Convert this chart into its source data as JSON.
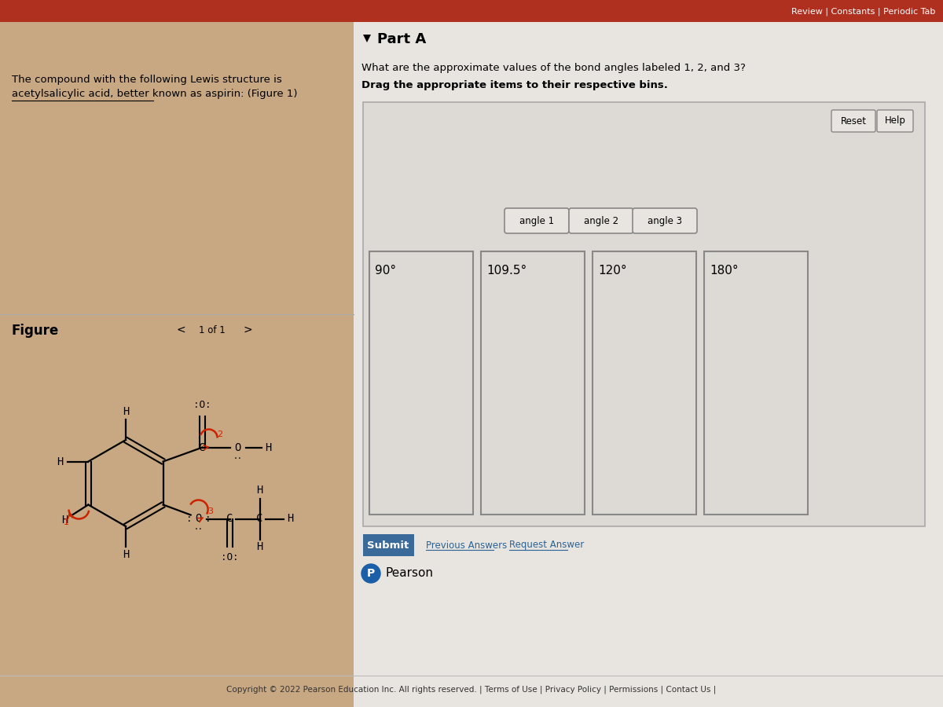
{
  "bg_left_color": "#c8a882",
  "bg_right_color": "#e8e4df",
  "header_bar_color": "#b03020",
  "title_text_line1": "The compound with the following Lewis structure is",
  "title_text_line2": "acetylsalicylic acid, better known as aspirin: (Figure 1)",
  "part_a_label": "Part A",
  "question_line1": "What are the approximate values of the bond angles labeled 1, 2, and 3?",
  "question_line2": "Drag the appropriate items to their respective bins.",
  "figure_label": "Figure",
  "figure_nav": "1 of 1",
  "angle_tokens": [
    "angle 1",
    "angle 2",
    "angle 3"
  ],
  "bin_labels": [
    "90°",
    "109.5°",
    "120°",
    "180°"
  ],
  "reset_btn": "Reset",
  "help_btn": "Help",
  "submit_btn": "Submit",
  "prev_answers": "Previous Answers",
  "req_answer": "Request Answer",
  "pearson_text": "Pearson",
  "copyright_text": "Copyright © 2022 Pearson Education Inc. All rights reserved. | Terms of Use | Privacy Policy | Permissions | Contact Us |",
  "review_text": "Review | Constants | Periodic Tab",
  "red_color": "#cc2200",
  "link_color": "#2a6496",
  "submit_color": "#3a6a9a"
}
